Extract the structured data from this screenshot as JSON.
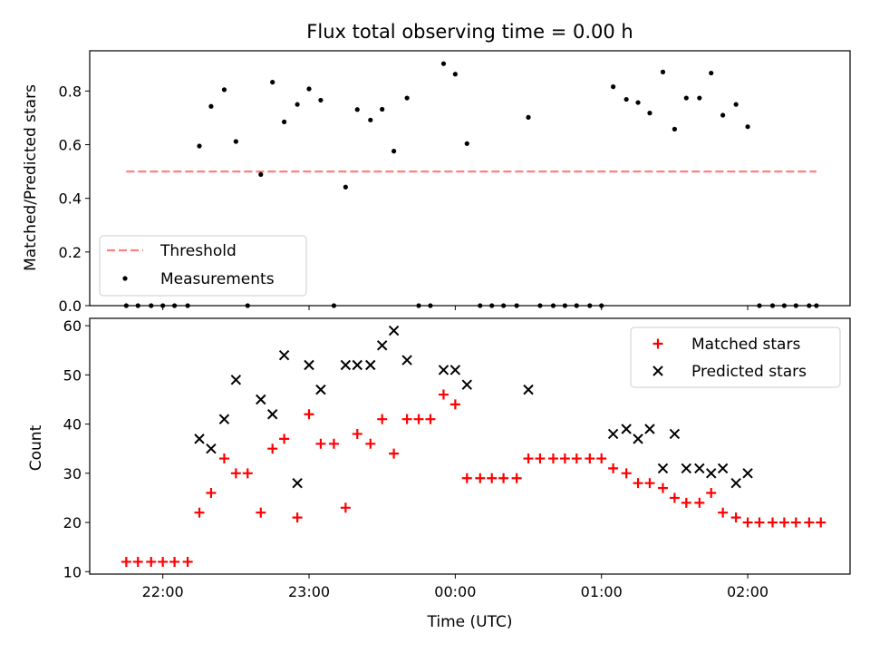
{
  "chart_data": [
    {
      "type": "scatter",
      "title": "Flux total observing time = 0.00 h",
      "ylabel": "Matched/Predicted stars",
      "xlim": [
        21.5,
        26.7
      ],
      "ylim": [
        0.0,
        0.95
      ],
      "yticks": [
        0.0,
        0.2,
        0.4,
        0.6,
        0.8
      ],
      "ytick_labels": [
        "0.0",
        "0.2",
        "0.4",
        "0.6",
        "0.8"
      ],
      "legend_position": "lower-left",
      "colors": {
        "threshold": "#ff8080",
        "measurements": "#000000"
      },
      "threshold": {
        "name": "Threshold",
        "y": 0.5,
        "x": [
          21.75,
          26.47
        ]
      },
      "series": [
        {
          "name": "Measurements",
          "x": [
            21.75,
            21.83,
            21.92,
            22.0,
            22.08,
            22.17,
            22.25,
            22.33,
            22.42,
            22.5,
            22.58,
            22.67,
            22.75,
            22.83,
            22.92,
            23.0,
            23.08,
            23.17,
            23.25,
            23.33,
            23.42,
            23.5,
            23.58,
            23.67,
            23.75,
            23.83,
            23.92,
            24.0,
            24.08,
            24.17,
            24.25,
            24.33,
            24.42,
            24.5,
            24.58,
            24.67,
            24.75,
            24.83,
            24.92,
            25.0,
            25.08,
            25.17,
            25.25,
            25.33,
            25.42,
            25.5,
            25.58,
            25.67,
            25.75,
            25.83,
            25.92,
            26.0,
            26.08,
            26.17,
            26.25,
            26.33,
            26.42,
            26.47
          ],
          "y": [
            0.0,
            0.0,
            0.0,
            0.0,
            0.0,
            0.0,
            0.595,
            0.743,
            0.805,
            0.612,
            0.0,
            0.489,
            0.833,
            0.685,
            0.75,
            0.808,
            0.766,
            0.0,
            0.442,
            0.731,
            0.692,
            0.732,
            0.576,
            0.774,
            0.0,
            0.0,
            0.902,
            0.863,
            0.604,
            0.0,
            0.0,
            0.0,
            0.0,
            0.702,
            0.0,
            0.0,
            0.0,
            0.0,
            0.0,
            0.0,
            0.816,
            0.769,
            0.757,
            0.718,
            0.871,
            0.658,
            0.774,
            0.774,
            0.867,
            0.71,
            0.75,
            0.667,
            0.0,
            0.0,
            0.0,
            0.0,
            0.0,
            0.0
          ]
        }
      ]
    },
    {
      "type": "scatter",
      "xlabel": "Time (UTC)",
      "ylabel": "Count",
      "xlim": [
        21.5,
        26.7
      ],
      "ylim": [
        9.5,
        61.5
      ],
      "yticks": [
        10,
        20,
        30,
        40,
        50,
        60
      ],
      "ytick_labels": [
        "10",
        "20",
        "30",
        "40",
        "50",
        "60"
      ],
      "xticks": [
        22,
        23,
        24,
        25,
        26
      ],
      "xtick_labels": [
        "22:00",
        "23:00",
        "00:00",
        "01:00",
        "02:00"
      ],
      "legend_position": "upper-right",
      "colors": {
        "matched": "#ff0000",
        "predicted": "#000000"
      },
      "series": [
        {
          "name": "Matched stars",
          "marker": "plus",
          "x": [
            21.75,
            21.83,
            21.92,
            22.0,
            22.08,
            22.17,
            22.25,
            22.33,
            22.42,
            22.5,
            22.58,
            22.67,
            22.75,
            22.83,
            22.92,
            23.0,
            23.08,
            23.17,
            23.25,
            23.33,
            23.42,
            23.5,
            23.58,
            23.67,
            23.75,
            23.83,
            23.92,
            24.0,
            24.08,
            24.17,
            24.25,
            24.33,
            24.42,
            24.5,
            24.58,
            24.67,
            24.75,
            24.83,
            24.92,
            25.0,
            25.08,
            25.17,
            25.25,
            25.33,
            25.42,
            25.5,
            25.58,
            25.67,
            25.75,
            25.83,
            25.92,
            26.0,
            26.08,
            26.17,
            26.25,
            26.33,
            26.42,
            26.5
          ],
          "y": [
            12,
            12,
            12,
            12,
            12,
            12,
            22,
            26,
            33,
            30,
            30,
            22,
            35,
            37,
            21,
            42,
            36,
            36,
            23,
            38,
            36,
            41,
            34,
            41,
            41,
            41,
            46,
            44,
            29,
            29,
            29,
            29,
            29,
            33,
            33,
            33,
            33,
            33,
            33,
            33,
            31,
            30,
            28,
            28,
            27,
            25,
            24,
            24,
            26,
            22,
            21,
            20,
            20,
            20,
            20,
            20,
            20,
            20
          ]
        },
        {
          "name": "Predicted stars",
          "marker": "x",
          "x": [
            22.25,
            22.33,
            22.42,
            22.5,
            22.67,
            22.75,
            22.83,
            22.92,
            23.0,
            23.08,
            23.25,
            23.33,
            23.42,
            23.5,
            23.58,
            23.67,
            23.92,
            24.0,
            24.08,
            24.5,
            25.08,
            25.17,
            25.25,
            25.33,
            25.42,
            25.5,
            25.58,
            25.67,
            25.75,
            25.83,
            25.92,
            26.0
          ],
          "y": [
            37,
            35,
            41,
            49,
            45,
            42,
            54,
            28,
            52,
            47,
            52,
            52,
            52,
            56,
            59,
            53,
            51,
            51,
            48,
            47,
            38,
            39,
            37,
            39,
            31,
            38,
            31,
            31,
            30,
            31,
            28,
            30
          ]
        }
      ]
    }
  ]
}
